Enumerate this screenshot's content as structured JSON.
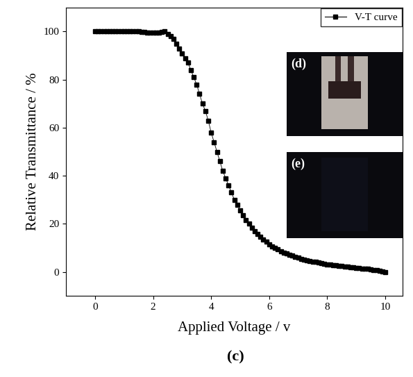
{
  "chart_data": {
    "type": "line",
    "x_label": "Applied Voltage / v",
    "y_label": "Relative Transmittance / %",
    "caption": "(c)",
    "annotations": [
      "(d)",
      "(e)"
    ],
    "x": [
      0.0,
      0.1,
      0.2,
      0.3,
      0.4,
      0.5,
      0.6,
      0.7,
      0.8,
      0.9,
      1.0,
      1.1,
      1.2,
      1.3,
      1.4,
      1.5,
      1.6,
      1.7,
      1.8,
      1.9,
      2.0,
      2.1,
      2.2,
      2.3,
      2.4,
      2.5,
      2.6,
      2.7,
      2.8,
      2.9,
      3.0,
      3.1,
      3.2,
      3.3,
      3.4,
      3.5,
      3.6,
      3.7,
      3.8,
      3.9,
      4.0,
      4.1,
      4.2,
      4.3,
      4.4,
      4.5,
      4.6,
      4.7,
      4.8,
      4.9,
      5.0,
      5.1,
      5.2,
      5.3,
      5.4,
      5.5,
      5.6,
      5.7,
      5.8,
      5.9,
      6.0,
      6.1,
      6.2,
      6.3,
      6.4,
      6.5,
      6.6,
      6.7,
      6.8,
      6.9,
      7.0,
      7.1,
      7.2,
      7.3,
      7.4,
      7.5,
      7.6,
      7.7,
      7.8,
      7.9,
      8.0,
      8.1,
      8.2,
      8.3,
      8.4,
      8.5,
      8.6,
      8.7,
      8.8,
      8.9,
      9.0,
      9.1,
      9.2,
      9.3,
      9.4,
      9.5,
      9.6,
      9.7,
      9.8,
      9.9,
      10.0
    ],
    "series": [
      {
        "name": "V-T curve",
        "color": "#000000",
        "marker": "square",
        "line_style": "solid",
        "values": [
          100,
          100,
          100,
          100,
          100,
          100,
          100,
          100,
          100,
          100,
          100,
          100,
          100,
          100,
          100,
          100,
          99.9,
          99.8,
          99.7,
          99.7,
          99.6,
          99.6,
          99.7,
          99.9,
          100,
          99,
          98,
          97,
          95,
          93,
          91,
          89,
          87,
          84,
          81,
          78,
          74,
          70,
          67,
          63,
          58,
          54,
          50,
          46,
          42,
          39,
          36,
          33,
          30,
          28,
          25.5,
          23.5,
          21.5,
          20,
          18.5,
          17,
          15.8,
          14.6,
          13.5,
          12.5,
          11.5,
          10.7,
          10,
          9.3,
          8.7,
          8.1,
          7.6,
          7.1,
          6.7,
          6.3,
          5.9,
          5.5,
          5.2,
          4.9,
          4.6,
          4.3,
          4.1,
          3.8,
          3.6,
          3.4,
          3.2,
          3.0,
          2.8,
          2.7,
          2.5,
          2.4,
          2.2,
          2.1,
          1.9,
          1.8,
          1.7,
          1.5,
          1.4,
          1.3,
          1.2,
          1.0,
          0.9,
          0.7,
          0.5,
          0.3,
          0
        ]
      }
    ],
    "xlim": [
      -1,
      10.6
    ],
    "xticks": [
      0,
      2,
      4,
      6,
      8,
      10
    ],
    "ylim": [
      -10,
      110
    ],
    "yticks": [
      0,
      20,
      40,
      60,
      80,
      100
    ],
    "legend": "upper right",
    "grid": false
  }
}
